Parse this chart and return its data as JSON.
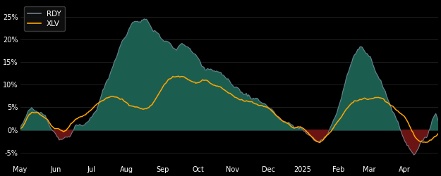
{
  "background_color": "#000000",
  "plot_bg_color": "#000000",
  "rdy_color": "#708090",
  "xlv_color": "#FFA500",
  "fill_positive_color": "#1b5e50",
  "fill_negative_color": "#6b1414",
  "yticks": [
    -0.05,
    0.0,
    0.05,
    0.1,
    0.15,
    0.2,
    0.25
  ],
  "ytick_labels": [
    "-5%",
    "0%",
    "5%",
    "10%",
    "15%",
    "20%",
    "25%"
  ],
  "ylim": [
    -0.075,
    0.28
  ],
  "legend_labels": [
    "RDY",
    "XLV"
  ],
  "x_month_positions": [
    0,
    31,
    62,
    93,
    124,
    155,
    185,
    216,
    246,
    277,
    304,
    335,
    360
  ],
  "x_month_labels": [
    "May",
    "Jun",
    "Jul",
    "Aug",
    "Sep",
    "Oct",
    "Nov",
    "Dec",
    "2025",
    "Feb",
    "Mar",
    "Apr",
    ""
  ]
}
